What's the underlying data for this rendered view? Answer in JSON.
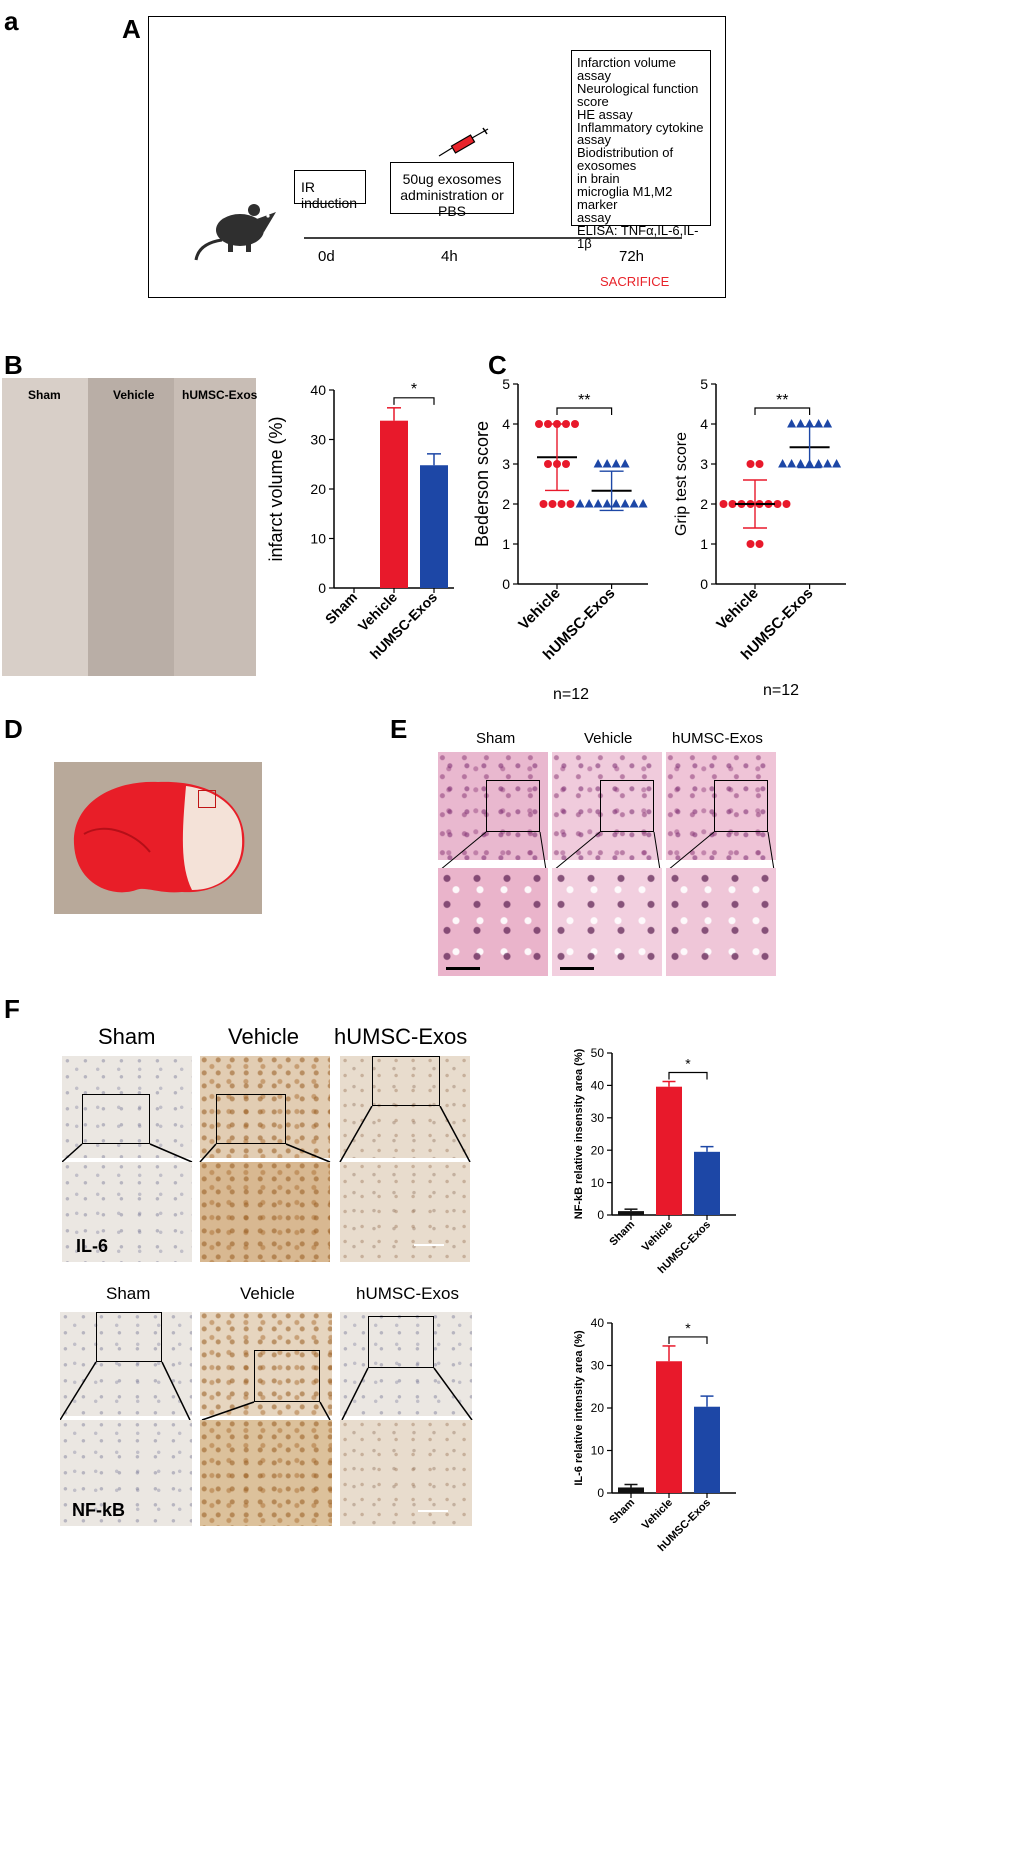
{
  "panels": {
    "a": "a",
    "A": "A",
    "B": "B",
    "C": "C",
    "D": "D",
    "E": "E",
    "F": "F"
  },
  "timeline": {
    "box_ir": "IR induction",
    "box_exo_line1": "50ug exosomes",
    "box_exo_line2": "administration or PBS",
    "assays": [
      "Infarction volume",
      "assay",
      "Neurological function",
      "score",
      "HE assay",
      "Inflammatory cytokine",
      "assay",
      "Biodistribution of exosomes",
      "in brain",
      "microglia M1,M2 marker",
      "assay",
      "ELISA: TNFα,IL-6,IL-1β"
    ],
    "t0": "0d",
    "t1": "4h",
    "t2": "72h",
    "sacrifice": "SACRIFICE",
    "colors": {
      "sacrifice": "#e8232a"
    }
  },
  "b_photo_labels": [
    "Sham",
    "Vehicle",
    "hUMSC-Exos"
  ],
  "e_labels": [
    "Sham",
    "Vehicle",
    "hUMSC-Exos"
  ],
  "f_il6_labels": [
    "Sham",
    "Vehicle",
    "hUMSC-Exos"
  ],
  "f_il6_tag": "IL-6",
  "f_nfkb_labels": [
    "Sham",
    "Vehicle",
    "hUMSC-Exos"
  ],
  "f_nfkb_tag": "NF-kB",
  "n_label": "n=12",
  "colors": {
    "red": "#e8192b",
    "blue": "#1d47a6",
    "black": "#111111"
  },
  "chart_data": [
    {
      "type": "bar",
      "id": "infarct",
      "categories": [
        "Sham",
        "Vehicle",
        "hUMSC-Exos"
      ],
      "values": [
        0,
        33.8,
        24.8
      ],
      "errors": [
        0,
        2.6,
        2.3
      ],
      "ylabel": "infarct volume (%)",
      "ylim": [
        0,
        40
      ],
      "yticks": [
        0,
        10,
        20,
        30,
        40
      ],
      "significance": "*"
    },
    {
      "type": "scatter",
      "id": "bederson",
      "categories": [
        "Vehicle",
        "hUMSC-Exos"
      ],
      "ylabel": "Bederson score",
      "ylim": [
        0,
        5
      ],
      "yticks": [
        0,
        1,
        2,
        3,
        4,
        5
      ],
      "groups": [
        {
          "name": "Vehicle",
          "mean": 3.17,
          "sd": 0.83,
          "points": [
            4,
            4,
            4,
            4,
            4,
            3,
            3,
            3,
            2,
            2,
            2,
            2
          ]
        },
        {
          "name": "hUMSC-Exos",
          "mean": 2.33,
          "sd": 0.49,
          "points": [
            3,
            3,
            3,
            3,
            2,
            2,
            2,
            2,
            2,
            2,
            2,
            2
          ]
        }
      ],
      "significance": "**"
    },
    {
      "type": "scatter",
      "id": "grip",
      "categories": [
        "Vehicle",
        "hUMSC-Exos"
      ],
      "ylabel": "Grip test score",
      "ylim": [
        0,
        5
      ],
      "yticks": [
        0,
        1,
        2,
        3,
        4,
        5
      ],
      "groups": [
        {
          "name": "Vehicle",
          "mean": 2.0,
          "sd": 0.6,
          "points": [
            3,
            3,
            2,
            2,
            2,
            2,
            2,
            2,
            2,
            2,
            1,
            1
          ]
        },
        {
          "name": "hUMSC-Exos",
          "mean": 3.42,
          "sd": 0.51,
          "points": [
            4,
            4,
            4,
            4,
            4,
            3,
            3,
            3,
            3,
            3,
            3,
            3
          ]
        }
      ],
      "significance": "**"
    },
    {
      "type": "bar",
      "id": "nfkb",
      "categories": [
        "Sham",
        "Vehicle",
        "hUMSC-Exos"
      ],
      "values": [
        1.2,
        39.6,
        19.5
      ],
      "errors": [
        0.6,
        1.6,
        1.6
      ],
      "ylabel": "NF-kB relative insensity area (%)",
      "ylim": [
        0,
        50
      ],
      "yticks": [
        0,
        10,
        20,
        30,
        40,
        50
      ],
      "significance": "*"
    },
    {
      "type": "bar",
      "id": "il6",
      "categories": [
        "Sham",
        "Vehicle",
        "hUMSC-Exos"
      ],
      "values": [
        1.3,
        31.0,
        20.3
      ],
      "errors": [
        0.7,
        3.6,
        2.5
      ],
      "ylabel": "IL-6 relative intensity area (%)",
      "ylim": [
        0,
        40
      ],
      "yticks": [
        0,
        10,
        20,
        30,
        40
      ],
      "significance": "*"
    }
  ]
}
